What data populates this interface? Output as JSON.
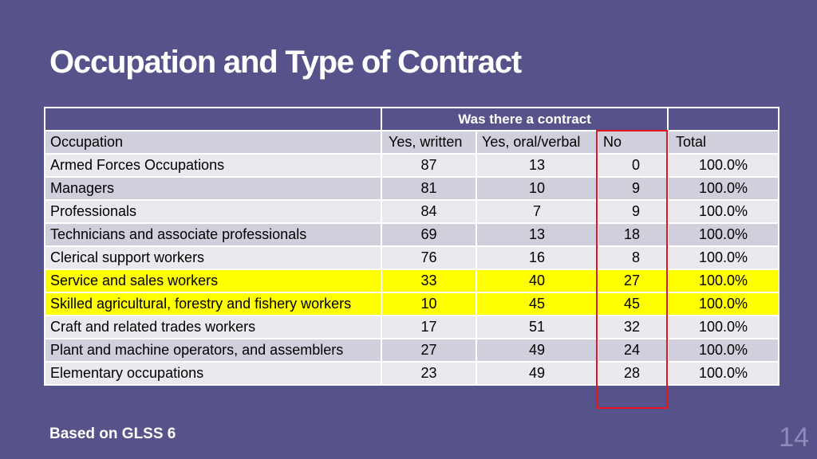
{
  "slide": {
    "title": "Occupation and Type of Contract",
    "footer": "Based on GLSS 6",
    "page_number": "14"
  },
  "table": {
    "group_header": "Was there a contract",
    "headers": {
      "occupation": "Occupation",
      "yes_written": "Yes, written",
      "yes_oral": "Yes, oral/verbal",
      "no": "No",
      "total": "Total"
    },
    "rows": [
      {
        "occupation": "Armed Forces Occupations",
        "yes_written": "87",
        "yes_oral": "13",
        "no": "0",
        "total": "100.0%"
      },
      {
        "occupation": "Managers",
        "yes_written": "81",
        "yes_oral": "10",
        "no": "9",
        "total": "100.0%"
      },
      {
        "occupation": "Professionals",
        "yes_written": "84",
        "yes_oral": "7",
        "no": "9",
        "total": "100.0%"
      },
      {
        "occupation": "Technicians and associate professionals",
        "yes_written": "69",
        "yes_oral": "13",
        "no": "18",
        "total": "100.0%"
      },
      {
        "occupation": "Clerical support workers",
        "yes_written": "76",
        "yes_oral": "16",
        "no": "8",
        "total": "100.0%"
      },
      {
        "occupation": "Service and sales workers",
        "yes_written": "33",
        "yes_oral": "40",
        "no": "27",
        "total": "100.0%"
      },
      {
        "occupation": "Skilled agricultural, forestry and fishery workers",
        "yes_written": "10",
        "yes_oral": "45",
        "no": "45",
        "total": "100.0%"
      },
      {
        "occupation": "Craft and related trades workers",
        "yes_written": "17",
        "yes_oral": "51",
        "no": "32",
        "total": "100.0%"
      },
      {
        "occupation": "Plant and machine operators, and assemblers",
        "yes_written": "27",
        "yes_oral": "49",
        "no": "24",
        "total": "100.0%"
      },
      {
        "occupation": "Elementary occupations",
        "yes_written": "23",
        "yes_oral": "49",
        "no": "28",
        "total": "100.0%"
      }
    ]
  },
  "colors": {
    "background": "#56538a",
    "row_light": "#e9e9ee",
    "row_dark": "#cfd0db",
    "highlight": "#ffff00",
    "no_column_outline": "#e8141b"
  }
}
